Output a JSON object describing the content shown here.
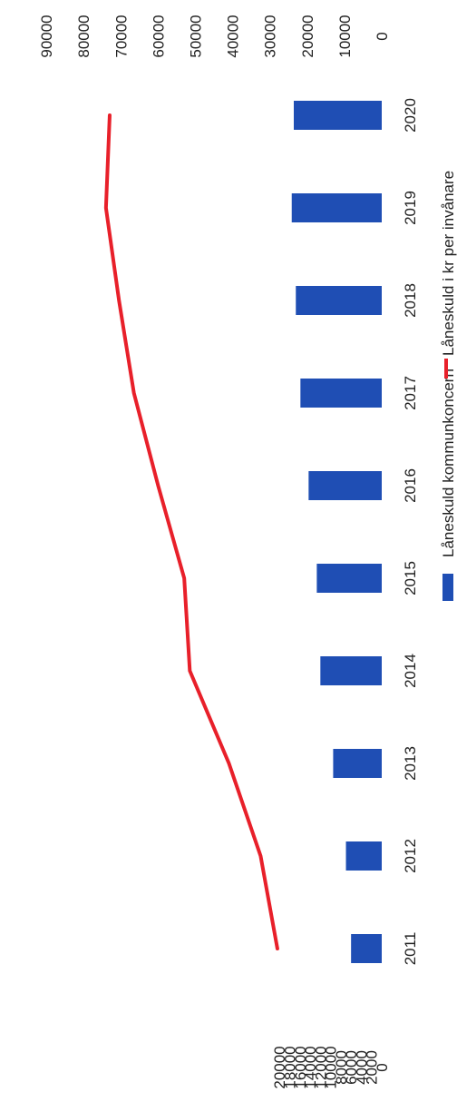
{
  "chart_data": {
    "type": "bar",
    "orientation": "rotated-90-clockwise",
    "categories": [
      "2011",
      "2012",
      "2013",
      "2014",
      "2015",
      "2016",
      "2017",
      "2018",
      "2019",
      "2020"
    ],
    "series": [
      {
        "name": "Låneskuld kommunkoncern",
        "kind": "bar",
        "axis": "left",
        "color": "#1f4eb4",
        "values": [
          6000,
          7000,
          9500,
          12000,
          12700,
          14300,
          15900,
          16800,
          17600,
          17200
        ]
      },
      {
        "name": "Låneskuld i kr per invånare",
        "kind": "line",
        "axis": "right",
        "color": "#e8202a",
        "values": [
          28000,
          32500,
          41000,
          51500,
          53000,
          60000,
          66500,
          70500,
          74000,
          73000
        ]
      }
    ],
    "left_axis": {
      "range": [
        0,
        20000
      ],
      "ticks": [
        "0",
        "2000",
        "4000",
        "6000",
        "8000",
        "10000",
        "12000",
        "14000",
        "16000",
        "18000",
        "20000"
      ]
    },
    "right_axis": {
      "range": [
        0,
        90000
      ],
      "ticks": [
        "0",
        "10000",
        "20000",
        "30000",
        "40000",
        "50000",
        "60000",
        "70000",
        "80000",
        "90000"
      ]
    },
    "grid": false,
    "legend_position": "bottom"
  }
}
